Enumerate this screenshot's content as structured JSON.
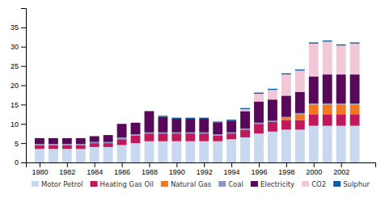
{
  "chart_data": {
    "type": "bar",
    "stacked": true,
    "grid": false,
    "legend": "bottom",
    "x": [
      1980,
      1981,
      1982,
      1983,
      1984,
      1985,
      1986,
      1987,
      1988,
      1989,
      1990,
      1991,
      1992,
      1993,
      1994,
      1995,
      1996,
      1997,
      1998,
      1999,
      2000,
      2001,
      2002,
      2003
    ],
    "xlim": [
      1979,
      2004.5
    ],
    "xticks": [
      1980,
      1982,
      1984,
      1986,
      1988,
      1990,
      1992,
      1994,
      1996,
      1998,
      2000,
      2002
    ],
    "ylim": [
      0,
      40
    ],
    "yticks": [
      0,
      5,
      10,
      15,
      20,
      25,
      30,
      35
    ],
    "series": [
      {
        "name": "Motor Petrol",
        "color": "#c8d8ee",
        "values": [
          3.5,
          3.5,
          3.5,
          3.5,
          4.0,
          4.0,
          4.5,
          5.0,
          5.5,
          5.5,
          5.5,
          5.5,
          5.5,
          5.5,
          6.0,
          6.5,
          7.5,
          8.0,
          8.5,
          8.5,
          9.5,
          9.5,
          9.5,
          9.5
        ]
      },
      {
        "name": "Heating Gas Oil",
        "color": "#c0185a",
        "values": [
          1.0,
          1.0,
          1.0,
          1.0,
          1.0,
          1.0,
          1.5,
          2.0,
          2.0,
          2.0,
          2.0,
          2.0,
          2.0,
          1.5,
          1.5,
          2.0,
          2.5,
          2.5,
          2.5,
          2.5,
          3.0,
          3.0,
          3.0,
          3.0
        ]
      },
      {
        "name": "Natural Gas",
        "color": "#f07820",
        "values": [
          0.0,
          0.0,
          0.0,
          0.0,
          0.0,
          0.0,
          0.0,
          0.0,
          0.0,
          0.0,
          0.0,
          0.0,
          0.0,
          0.0,
          0.0,
          0.0,
          0.0,
          0.0,
          0.5,
          1.5,
          2.5,
          2.5,
          2.5,
          2.5
        ]
      },
      {
        "name": "Coal",
        "color": "#8898c0",
        "values": [
          0.3,
          0.3,
          0.3,
          0.3,
          0.3,
          0.3,
          0.5,
          0.3,
          0.3,
          0.3,
          0.3,
          0.3,
          0.3,
          0.3,
          0.3,
          0.3,
          0.3,
          0.3,
          0.3,
          0.3,
          0.3,
          0.3,
          0.3,
          0.3
        ]
      },
      {
        "name": "Electricity",
        "color": "#580858",
        "values": [
          1.5,
          1.5,
          1.5,
          1.5,
          1.5,
          1.8,
          3.5,
          3.0,
          5.5,
          4.0,
          3.5,
          3.5,
          3.5,
          3.0,
          3.0,
          4.5,
          5.5,
          5.5,
          5.5,
          5.5,
          7.0,
          7.5,
          7.5,
          7.5
        ]
      },
      {
        "name": "CO2",
        "color": "#f0c8d8",
        "values": [
          0.0,
          0.0,
          0.0,
          0.0,
          0.0,
          0.0,
          0.0,
          0.0,
          0.0,
          0.0,
          0.0,
          0.0,
          0.0,
          0.0,
          0.0,
          0.5,
          2.0,
          2.5,
          5.5,
          5.5,
          8.5,
          8.5,
          7.5,
          8.0
        ]
      },
      {
        "name": "Sulphur",
        "color": "#1060a0",
        "values": [
          0.0,
          0.0,
          0.0,
          0.0,
          0.0,
          0.0,
          0.0,
          0.0,
          0.0,
          0.3,
          0.3,
          0.3,
          0.3,
          0.3,
          0.3,
          0.3,
          0.3,
          0.3,
          0.3,
          0.3,
          0.3,
          0.3,
          0.3,
          0.3
        ]
      }
    ]
  }
}
